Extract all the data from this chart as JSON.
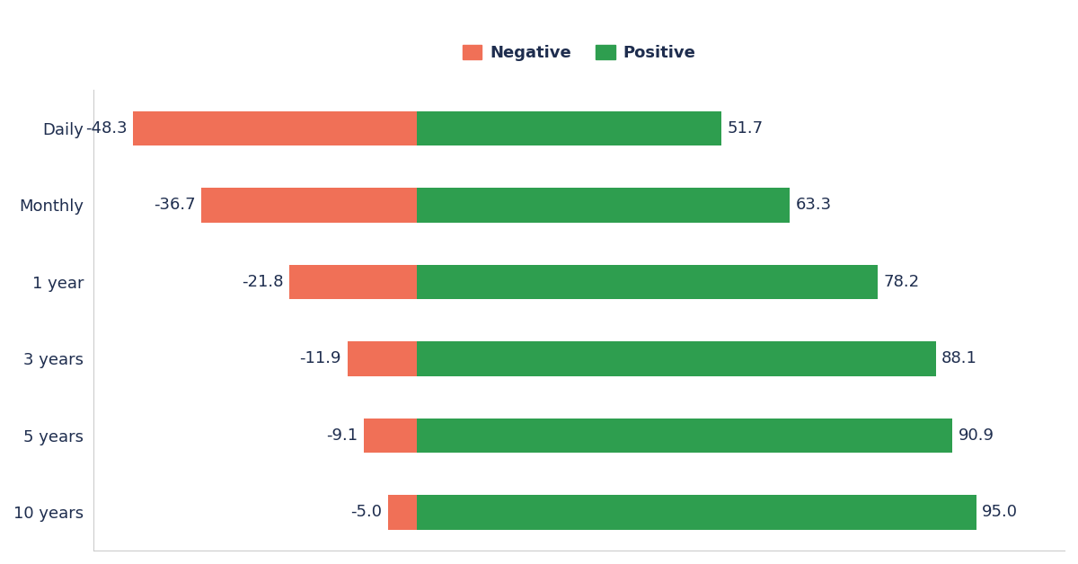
{
  "categories": [
    "Daily",
    "Monthly",
    "1 year",
    "3 years",
    "5 years",
    "10 years"
  ],
  "negative_values": [
    48.3,
    36.7,
    21.8,
    11.9,
    9.1,
    5.0
  ],
  "positive_values": [
    51.7,
    63.3,
    78.2,
    88.1,
    90.9,
    95.0
  ],
  "negative_labels": [
    "-48.3",
    "-36.7",
    "-21.8",
    "-11.9",
    "-9.1",
    "-5.0"
  ],
  "positive_labels": [
    "51.7",
    "63.3",
    "78.2",
    "88.1",
    "90.9",
    "95.0"
  ],
  "negative_color": "#F07057",
  "positive_color": "#2E9E4F",
  "background_color": "#FFFFFF",
  "text_color": "#1E2D4E",
  "bar_height": 0.45,
  "legend_negative": "Negative",
  "legend_positive": "Positive",
  "figsize": [
    12.0,
    6.28
  ],
  "label_fontsize": 13,
  "tick_fontsize": 13,
  "legend_fontsize": 13,
  "xlim_left": -55,
  "xlim_right": 110
}
